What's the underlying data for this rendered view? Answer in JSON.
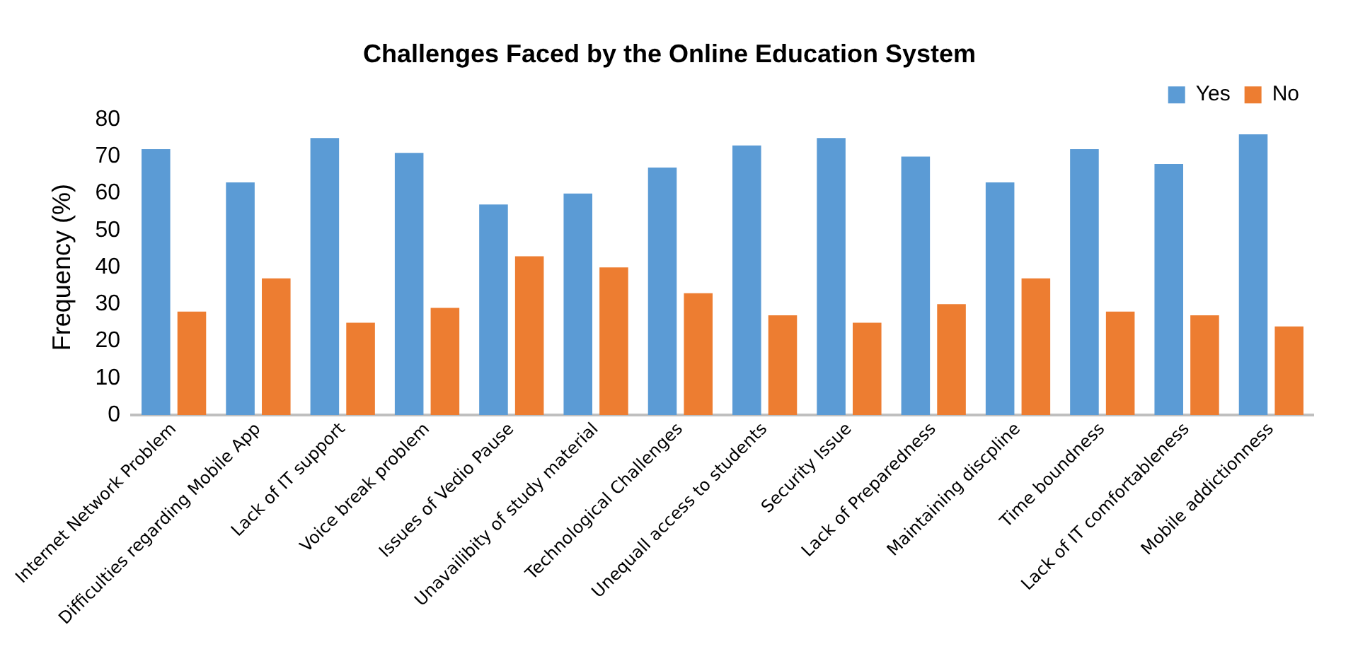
{
  "chart_data": {
    "type": "bar",
    "title": "Challenges Faced by the Online Education System",
    "ylabel": "Frequency (%)",
    "categories": [
      "Internet Network Problem",
      "Difficulties regarding Mobile App",
      "Lack of IT support",
      "Voice break problem",
      "Issues of Vedio Pause",
      "Unavailibity of study material",
      "Technological Challenges",
      "Unequall access to students",
      "Security Issue",
      "Lack of Preparedness",
      "Maintaining discpline",
      "Time boundness",
      "Lack of IT comfortableness",
      "Mobile addictionness"
    ],
    "series": [
      {
        "name": "Yes",
        "color": "#5b9bd5",
        "values": [
          72,
          63,
          75,
          71,
          57,
          60,
          67,
          73,
          75,
          70,
          63,
          72,
          68,
          76
        ]
      },
      {
        "name": "No",
        "color": "#ed7d31",
        "values": [
          28,
          37,
          25,
          29,
          43,
          40,
          33,
          27,
          25,
          30,
          37,
          28,
          27,
          24
        ]
      }
    ],
    "ylim": [
      0,
      80
    ],
    "yticks": [
      0,
      10,
      20,
      30,
      40,
      50,
      60,
      70,
      80
    ],
    "grid": false,
    "legend": "top right"
  }
}
